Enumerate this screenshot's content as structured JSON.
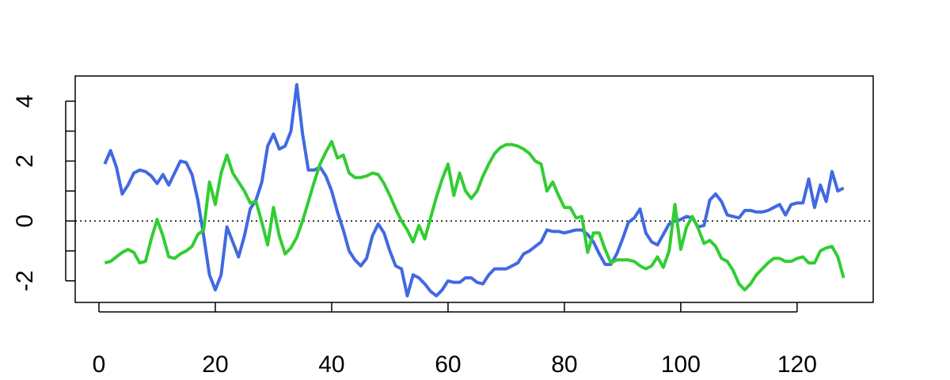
{
  "chart_data": {
    "type": "line",
    "x": [
      1,
      2,
      3,
      4,
      5,
      6,
      7,
      8,
      9,
      10,
      11,
      12,
      13,
      14,
      15,
      16,
      17,
      18,
      19,
      20,
      21,
      22,
      23,
      24,
      25,
      26,
      27,
      28,
      29,
      30,
      31,
      32,
      33,
      34,
      35,
      36,
      37,
      38,
      39,
      40,
      41,
      42,
      43,
      44,
      45,
      46,
      47,
      48,
      49,
      50,
      51,
      52,
      53,
      54,
      55,
      56,
      57,
      58,
      59,
      60,
      61,
      62,
      63,
      64,
      65,
      66,
      67,
      68,
      69,
      70,
      71,
      72,
      73,
      74,
      75,
      76,
      77,
      78,
      79,
      80,
      81,
      82,
      83,
      84,
      85,
      86,
      87,
      88,
      89,
      90,
      91,
      92,
      93,
      94,
      95,
      96,
      97,
      98,
      99,
      100,
      101,
      102,
      103,
      104,
      105,
      106,
      107,
      108,
      109,
      110,
      111,
      112,
      113,
      114,
      115,
      116,
      117,
      118,
      119,
      120,
      121,
      122,
      123,
      124,
      125,
      126,
      127,
      128
    ],
    "series": [
      {
        "color": "#4169e1",
        "values": [
          1.9,
          2.35,
          1.8,
          0.9,
          1.2,
          1.6,
          1.7,
          1.65,
          1.5,
          1.25,
          1.55,
          1.2,
          1.6,
          2.0,
          1.95,
          1.55,
          0.7,
          -0.5,
          -1.8,
          -2.3,
          -1.8,
          -0.2,
          -0.7,
          -1.2,
          -0.5,
          0.4,
          0.7,
          1.3,
          2.5,
          2.9,
          2.4,
          2.5,
          3.0,
          4.55,
          2.9,
          1.7,
          1.7,
          1.8,
          1.5,
          1.0,
          0.3,
          -0.3,
          -1.0,
          -1.3,
          -1.5,
          -1.25,
          -0.5,
          -0.1,
          -0.4,
          -1.0,
          -1.5,
          -1.6,
          -2.5,
          -1.8,
          -1.9,
          -2.1,
          -2.35,
          -2.5,
          -2.3,
          -2.0,
          -2.05,
          -2.05,
          -1.9,
          -1.9,
          -2.05,
          -2.1,
          -1.8,
          -1.6,
          -1.6,
          -1.6,
          -1.5,
          -1.4,
          -1.1,
          -1.0,
          -0.85,
          -0.7,
          -0.3,
          -0.35,
          -0.35,
          -0.4,
          -0.35,
          -0.3,
          -0.3,
          -0.45,
          -0.7,
          -1.1,
          -1.45,
          -1.45,
          -1.1,
          -0.6,
          -0.05,
          0.1,
          0.4,
          -0.4,
          -0.7,
          -0.8,
          -0.45,
          -0.1,
          0.0,
          0.05,
          0.15,
          0.1,
          -0.2,
          -0.15,
          0.7,
          0.9,
          0.65,
          0.2,
          0.15,
          0.1,
          0.35,
          0.35,
          0.3,
          0.3,
          0.35,
          0.45,
          0.55,
          0.2,
          0.55,
          0.6,
          0.6,
          1.4,
          0.45,
          1.2,
          0.65,
          1.65,
          1.0,
          1.1
        ]
      },
      {
        "color": "#32cd32",
        "values": [
          -1.4,
          -1.35,
          -1.2,
          -1.05,
          -0.95,
          -1.05,
          -1.4,
          -1.35,
          -0.6,
          0.05,
          -0.5,
          -1.2,
          -1.25,
          -1.1,
          -1.0,
          -0.85,
          -0.45,
          -0.3,
          1.3,
          0.55,
          1.6,
          2.2,
          1.6,
          1.3,
          1.0,
          0.6,
          0.65,
          -0.05,
          -0.8,
          0.45,
          -0.5,
          -1.1,
          -0.9,
          -0.55,
          0.0,
          0.65,
          1.3,
          1.9,
          2.3,
          2.65,
          2.1,
          2.2,
          1.6,
          1.45,
          1.45,
          1.5,
          1.6,
          1.55,
          1.25,
          0.85,
          0.4,
          0.0,
          -0.3,
          -0.7,
          -0.15,
          -0.6,
          0.1,
          0.8,
          1.4,
          1.9,
          0.85,
          1.6,
          1.0,
          0.75,
          1.0,
          1.5,
          1.9,
          2.25,
          2.45,
          2.55,
          2.55,
          2.5,
          2.4,
          2.25,
          2.0,
          1.9,
          1.0,
          1.3,
          0.85,
          0.45,
          0.45,
          0.1,
          0.15,
          -1.05,
          -0.4,
          -0.4,
          -0.95,
          -1.4,
          -1.3,
          -1.3,
          -1.3,
          -1.35,
          -1.5,
          -1.6,
          -1.5,
          -1.2,
          -1.55,
          -1.0,
          0.55,
          -0.95,
          -0.2,
          0.15,
          -0.25,
          -0.75,
          -0.65,
          -0.85,
          -1.25,
          -1.35,
          -1.65,
          -2.1,
          -2.3,
          -2.1,
          -1.8,
          -1.6,
          -1.4,
          -1.25,
          -1.25,
          -1.35,
          -1.35,
          -1.25,
          -1.2,
          -1.4,
          -1.4,
          -1.0,
          -0.9,
          -0.85,
          -1.2,
          -1.9
        ]
      }
    ],
    "xlim": [
      -4.08,
      133.08
    ],
    "xticks": [
      0,
      20,
      40,
      60,
      80,
      100,
      120
    ],
    "ylim": [
      -2.72,
      4.84
    ],
    "yticks": [
      -2,
      0,
      2,
      4
    ],
    "yminorticks": [
      -1,
      1,
      3
    ],
    "hline": 0
  }
}
